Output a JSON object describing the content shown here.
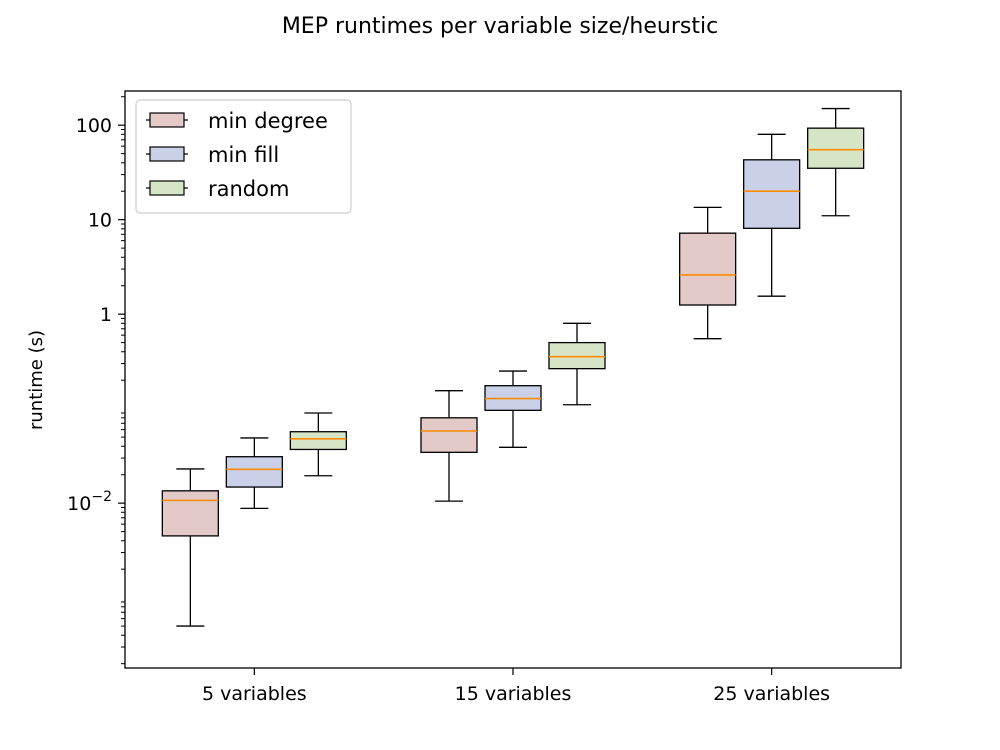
{
  "chart_data": {
    "type": "box",
    "title": "MEP runtimes per variable size/heurstic",
    "xlabel": "",
    "ylabel": "runtime (s)",
    "yscale": "log",
    "ylim": [
      0.00018,
      230
    ],
    "yticks": [
      {
        "value": 0.01,
        "base": "10",
        "exp": "−2"
      },
      {
        "value": 1,
        "label": "1"
      },
      {
        "value": 10,
        "label": "10"
      },
      {
        "value": 100,
        "label": "100"
      }
    ],
    "categories": [
      "5 variables",
      "15 variables",
      "25 variables"
    ],
    "legend": {
      "position": "top-left"
    },
    "grid": false,
    "colors": {
      "min_degree": "#e4c9c9",
      "min_fill": "#c9d0e8",
      "random": "#d7e5c7",
      "median": "#ff8c00"
    },
    "series": [
      {
        "name": "min degree",
        "color_key": "min_degree",
        "boxes": [
          {
            "whislo": 0.0005,
            "q1": 0.0045,
            "med": 0.0107,
            "q3": 0.0135,
            "whishi": 0.023
          },
          {
            "whislo": 0.0105,
            "q1": 0.0345,
            "med": 0.058,
            "q3": 0.08,
            "whishi": 0.155
          },
          {
            "whislo": 0.55,
            "q1": 1.25,
            "med": 2.6,
            "q3": 7.2,
            "whishi": 13.5
          }
        ]
      },
      {
        "name": "min fill",
        "color_key": "min_fill",
        "boxes": [
          {
            "whislo": 0.0088,
            "q1": 0.0148,
            "med": 0.0228,
            "q3": 0.031,
            "whishi": 0.049
          },
          {
            "whislo": 0.039,
            "q1": 0.096,
            "med": 0.128,
            "q3": 0.175,
            "whishi": 0.25
          },
          {
            "whislo": 1.55,
            "q1": 8.1,
            "med": 20.0,
            "q3": 43.0,
            "whishi": 80.0
          }
        ]
      },
      {
        "name": "random",
        "color_key": "random",
        "boxes": [
          {
            "whislo": 0.0195,
            "q1": 0.037,
            "med": 0.048,
            "q3": 0.057,
            "whishi": 0.09
          },
          {
            "whislo": 0.11,
            "q1": 0.265,
            "med": 0.355,
            "q3": 0.5,
            "whishi": 0.8
          },
          {
            "whislo": 11.0,
            "q1": 35.0,
            "med": 55.0,
            "q3": 93.0,
            "whishi": 150.0
          }
        ]
      }
    ]
  }
}
